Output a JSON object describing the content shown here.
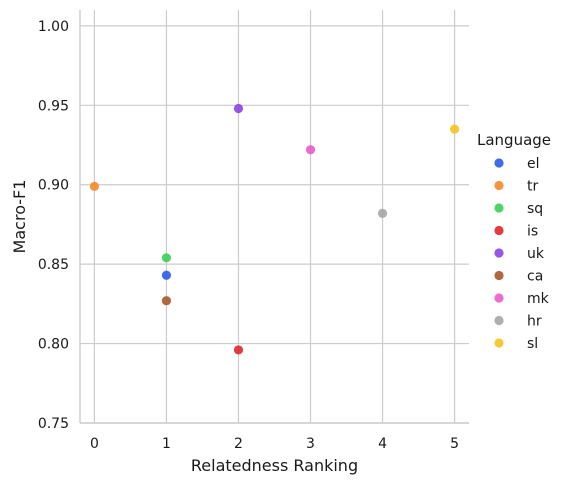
{
  "chart_data": {
    "type": "scatter",
    "title": "",
    "xlabel": "Relatedness Ranking",
    "ylabel": "Macro-F1",
    "xlim": [
      -0.2,
      5.2
    ],
    "ylim": [
      0.75,
      1.01
    ],
    "xticks": [
      0,
      1,
      2,
      3,
      4,
      5
    ],
    "xtick_labels": [
      "0",
      "1",
      "2",
      "3",
      "4",
      "5"
    ],
    "yticks": [
      0.75,
      0.8,
      0.85,
      0.9,
      0.95,
      1.0
    ],
    "ytick_labels": [
      "0.75",
      "0.80",
      "0.85",
      "0.90",
      "0.95",
      "1.00"
    ],
    "grid": true,
    "legend": {
      "title": "Language",
      "placement": "right"
    },
    "series": [
      {
        "name": "el",
        "color": "#2b5ce6",
        "points": [
          {
            "x": 1,
            "y": 0.843
          }
        ]
      },
      {
        "name": "tr",
        "color": "#f5892a",
        "points": [
          {
            "x": 0,
            "y": 0.899
          }
        ]
      },
      {
        "name": "sq",
        "color": "#3ccf57",
        "points": [
          {
            "x": 1,
            "y": 0.854
          }
        ]
      },
      {
        "name": "is",
        "color": "#e0262c",
        "points": [
          {
            "x": 2,
            "y": 0.796
          }
        ]
      },
      {
        "name": "uk",
        "color": "#8b45e0",
        "points": [
          {
            "x": 2,
            "y": 0.948
          }
        ]
      },
      {
        "name": "ca",
        "color": "#a8582a",
        "points": [
          {
            "x": 1,
            "y": 0.827
          }
        ]
      },
      {
        "name": "mk",
        "color": "#ea5bc8",
        "points": [
          {
            "x": 3,
            "y": 0.922
          }
        ]
      },
      {
        "name": "hr",
        "color": "#a6a6a6",
        "points": [
          {
            "x": 4,
            "y": 0.882
          }
        ]
      },
      {
        "name": "sl",
        "color": "#f6c324",
        "points": [
          {
            "x": 5,
            "y": 0.935
          }
        ]
      }
    ]
  }
}
